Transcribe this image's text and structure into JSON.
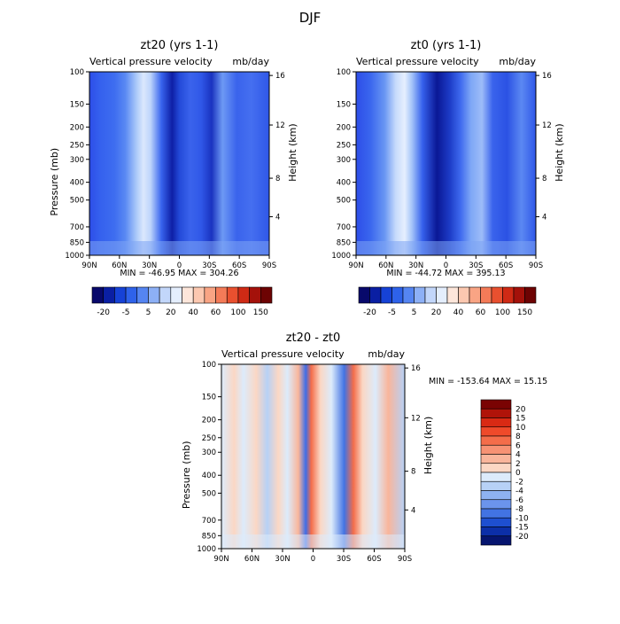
{
  "figure_title": "DJF",
  "chart_data": [
    {
      "type": "heatmap",
      "title": "zt20 (yrs 1-1)",
      "subtitle_left": "Vertical pressure velocity",
      "subtitle_right": "mb/day",
      "ylabel": "Pressure (mb)",
      "ylabel_right": "Height (km)",
      "x_ticks": [
        "90N",
        "60N",
        "30N",
        "0",
        "30S",
        "60S",
        "90S"
      ],
      "y_ticks": [
        "100",
        "150",
        "200",
        "250",
        "300",
        "400",
        "500",
        "700",
        "850",
        "1000"
      ],
      "y_ticks_right": [
        "16",
        "12",
        "8",
        "4"
      ],
      "stats": "MIN = -46.95   MAX = 304.26",
      "min": -46.95,
      "max": 304.26,
      "colorbar_labels": [
        "-20",
        "-5",
        "5",
        "20",
        "40",
        "60",
        "100",
        "150"
      ],
      "colorbar_colors": [
        "#08096b",
        "#0a1fa3",
        "#1642d6",
        "#2e62ea",
        "#5585f2",
        "#8db0f6",
        "#c2d6fa",
        "#e4eefd",
        "#fde6da",
        "#fcc8b0",
        "#f9a484",
        "#f47b58",
        "#e9502f",
        "#cf2a15",
        "#a4110a",
        "#6d0303"
      ]
    },
    {
      "type": "heatmap",
      "title": "zt0 (yrs 1-1)",
      "subtitle_left": "Vertical pressure velocity",
      "subtitle_right": "mb/day",
      "ylabel": "",
      "ylabel_right": "Height (km)",
      "x_ticks": [
        "90N",
        "60N",
        "30N",
        "0",
        "30S",
        "60S",
        "90S"
      ],
      "y_ticks": [
        "100",
        "150",
        "200",
        "250",
        "300",
        "400",
        "500",
        "700",
        "850",
        "1000"
      ],
      "y_ticks_right": [
        "16",
        "12",
        "8",
        "4"
      ],
      "stats": "MIN = -44.72   MAX = 395.13",
      "min": -44.72,
      "max": 395.13,
      "colorbar_labels": [
        "-20",
        "-5",
        "5",
        "20",
        "40",
        "60",
        "100",
        "150"
      ],
      "colorbar_colors": [
        "#08096b",
        "#0a1fa3",
        "#1642d6",
        "#2e62ea",
        "#5585f2",
        "#8db0f6",
        "#c2d6fa",
        "#e4eefd",
        "#fde6da",
        "#fcc8b0",
        "#f9a484",
        "#f47b58",
        "#e9502f",
        "#cf2a15",
        "#a4110a",
        "#6d0303"
      ]
    },
    {
      "type": "heatmap",
      "title": "zt20 - zt0",
      "subtitle_left": "Vertical pressure velocity",
      "subtitle_right": "mb/day",
      "ylabel": "Pressure (mb)",
      "ylabel_right": "Height (km)",
      "x_ticks": [
        "90N",
        "60N",
        "30N",
        "0",
        "30S",
        "60S",
        "90S"
      ],
      "y_ticks": [
        "100",
        "150",
        "200",
        "250",
        "300",
        "400",
        "500",
        "700",
        "850",
        "1000"
      ],
      "y_ticks_right": [
        "16",
        "12",
        "8",
        "4"
      ],
      "stats": "MIN = -153.64   MAX =  15.15",
      "min": -153.64,
      "max": 15.15,
      "colorbar_labels": [
        "20",
        "15",
        "10",
        "8",
        "6",
        "4",
        "2",
        "0",
        "-2",
        "-4",
        "-6",
        "-8",
        "-10",
        "-15",
        "-20"
      ],
      "colorbar_colors": [
        "#7a0303",
        "#b01309",
        "#d92a14",
        "#ef4a2a",
        "#f46d4a",
        "#f79274",
        "#f9b59b",
        "#fbd7c4",
        "#dcebfb",
        "#b7d1f6",
        "#8eb2f1",
        "#6b94ec",
        "#4273e3",
        "#1e4fd0",
        "#0c2fa8",
        "#06156f"
      ]
    }
  ]
}
